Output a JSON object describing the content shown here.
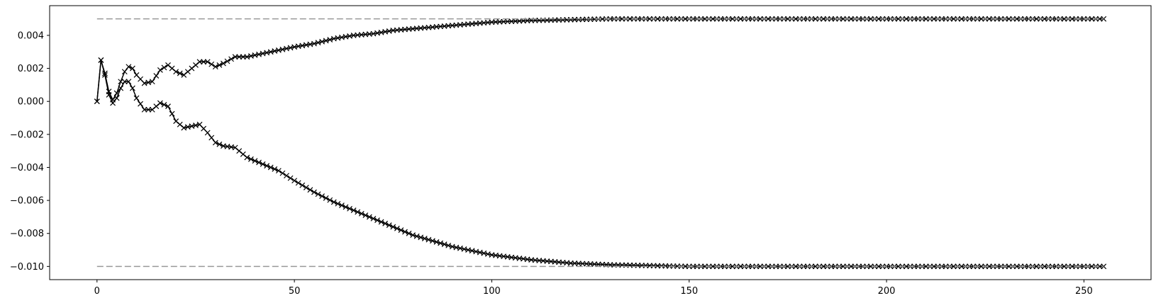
{
  "chart_data": {
    "type": "line",
    "title": "",
    "xlabel": "",
    "ylabel": "",
    "xlim": [
      -12,
      267
    ],
    "ylim": [
      -0.0108,
      0.0058
    ],
    "grid": false,
    "x_ticks": [
      0,
      50,
      100,
      150,
      200,
      250
    ],
    "x_tick_labels": [
      "0",
      "50",
      "100",
      "150",
      "200",
      "250"
    ],
    "y_ticks": [
      0.004,
      0.002,
      0.0,
      -0.002,
      -0.004,
      -0.006,
      -0.008,
      -0.01
    ],
    "y_tick_labels": [
      "0.004",
      "0.002",
      "0.000",
      "−0.002",
      "−0.004",
      "−0.006",
      "−0.008",
      "−0.010"
    ],
    "series": [
      {
        "marker": "x",
        "color": "#000000",
        "x": [
          0,
          1,
          2,
          3,
          4,
          5,
          6,
          7,
          8,
          9,
          10,
          12,
          14,
          16,
          18,
          20,
          22,
          24,
          26,
          28,
          30,
          32,
          35,
          38,
          42,
          46,
          50,
          55,
          60,
          65,
          70,
          75,
          80,
          90,
          100,
          110,
          120,
          130,
          150,
          200,
          255
        ],
        "y": [
          0.0,
          0.0025,
          0.0017,
          0.0006,
          0.0001,
          0.0005,
          0.0012,
          0.0018,
          0.0021,
          0.002,
          0.0016,
          0.0011,
          0.0012,
          0.0019,
          0.0022,
          0.0018,
          0.0016,
          0.002,
          0.0024,
          0.0024,
          0.0021,
          0.0023,
          0.0027,
          0.0027,
          0.0029,
          0.0031,
          0.0033,
          0.0035,
          0.0038,
          0.004,
          0.0041,
          0.0043,
          0.0044,
          0.0046,
          0.0048,
          0.0049,
          0.00495,
          0.005,
          0.005,
          0.005,
          0.005
        ]
      },
      {
        "marker": "x",
        "color": "#000000",
        "x": [
          0,
          1,
          2,
          3,
          4,
          5,
          6,
          7,
          8,
          9,
          10,
          12,
          14,
          16,
          18,
          20,
          22,
          24,
          26,
          28,
          30,
          32,
          35,
          38,
          42,
          46,
          50,
          55,
          60,
          65,
          70,
          75,
          80,
          90,
          100,
          110,
          120,
          130,
          150,
          200,
          255
        ],
        "y": [
          0.0,
          0.0025,
          0.0016,
          0.0004,
          -0.0001,
          0.0002,
          0.0008,
          0.0012,
          0.0012,
          0.0008,
          0.0002,
          -0.0005,
          -0.0005,
          -0.0001,
          -0.0003,
          -0.0012,
          -0.0016,
          -0.0015,
          -0.0014,
          -0.0019,
          -0.0025,
          -0.0027,
          -0.0028,
          -0.0034,
          -0.0038,
          -0.0042,
          -0.0048,
          -0.0055,
          -0.0061,
          -0.0066,
          -0.0071,
          -0.0076,
          -0.0081,
          -0.0088,
          -0.0093,
          -0.0096,
          -0.0098,
          -0.0099,
          -0.01,
          -0.01,
          -0.01
        ]
      },
      {
        "line_style": "dashed",
        "color": "#999999",
        "x": [
          0,
          255
        ],
        "y": [
          0.005,
          0.005
        ]
      },
      {
        "line_style": "dashed",
        "color": "#999999",
        "x": [
          0,
          255
        ],
        "y": [
          -0.01,
          -0.01
        ]
      }
    ]
  }
}
